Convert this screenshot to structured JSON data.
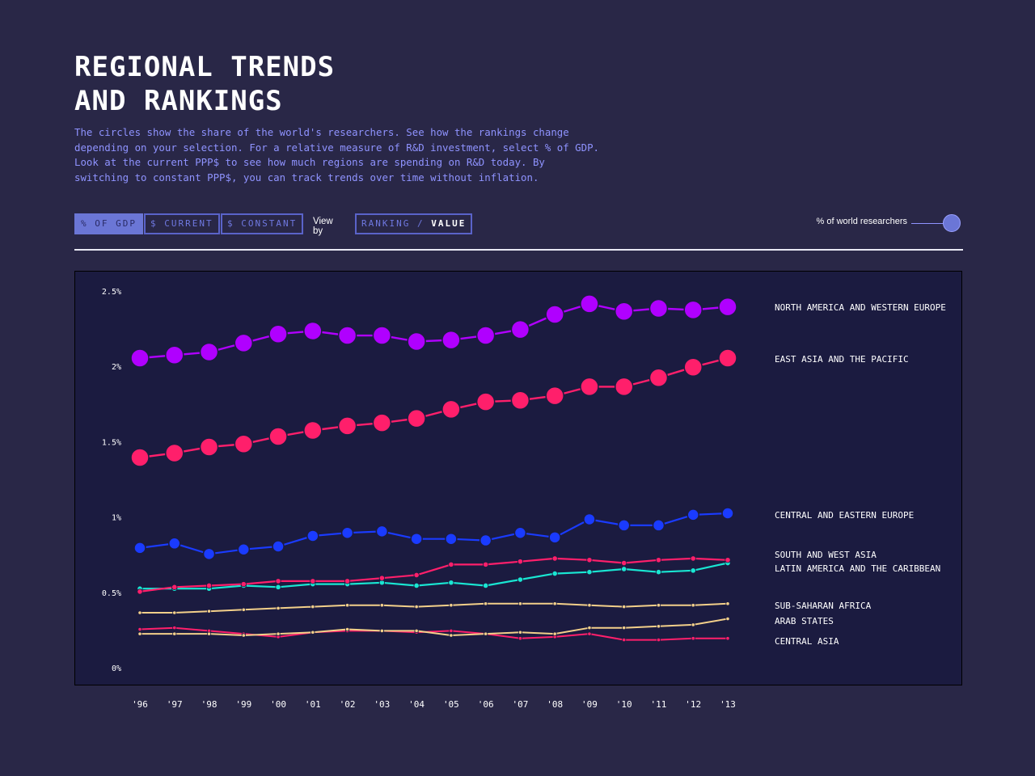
{
  "header": {
    "title_line1": "REGIONAL TRENDS",
    "title_line2": "AND RANKINGS",
    "description_lines": [
      "The circles show the share of the world's researchers. See how the rankings change",
      "depending on your selection. For a relative measure of R&D investment, select % of GDP.",
      "Look at the current PPP$ to see how much regions are spending on R&D today. By",
      "switching to constant PPP$, you can track trends over time without inflation."
    ]
  },
  "controls": {
    "gdp_label": "% OF GDP",
    "current_label": "$ CURRENT",
    "constant_label": "$ CONSTANT",
    "viewby_label": "View by",
    "ranking_label": "RANKING",
    "separator": "/",
    "value_label": "VALUE",
    "active_measure": "% OF GDP",
    "active_view": "VALUE"
  },
  "legend": {
    "size_label": "% of world researchers"
  },
  "colors": {
    "background": "#292747",
    "plot_background": "#1b1b40",
    "accent": "#6b76d6",
    "purple": "#b000ff",
    "pink": "#ff1f6b",
    "blue": "#1a3bff",
    "cyan": "#19e6d2",
    "sand": "#f3d08a"
  },
  "chart_data": {
    "type": "line",
    "x": [
      "'96",
      "'97",
      "'98",
      "'99",
      "'00",
      "'01",
      "'02",
      "'03",
      "'04",
      "'05",
      "'06",
      "'07",
      "'08",
      "'09",
      "'10",
      "'11",
      "'12",
      "'13"
    ],
    "ylim": [
      0,
      2.5
    ],
    "yticks": [
      {
        "value": 0,
        "label": "0%"
      },
      {
        "value": 0.5,
        "label": "0.5%"
      },
      {
        "value": 1,
        "label": "1%"
      },
      {
        "value": 1.5,
        "label": "1.5%"
      },
      {
        "value": 2,
        "label": "2%"
      },
      {
        "value": 2.5,
        "label": "2.5%"
      }
    ],
    "grid": false,
    "series": [
      {
        "name": "NORTH AMERICA AND WESTERN EUROPE",
        "color": "#b000ff",
        "marker_size": "large",
        "values": [
          2.06,
          2.08,
          2.1,
          2.16,
          2.22,
          2.24,
          2.21,
          2.21,
          2.17,
          2.18,
          2.21,
          2.25,
          2.35,
          2.42,
          2.37,
          2.39,
          2.38,
          2.4
        ]
      },
      {
        "name": "EAST ASIA AND THE PACIFIC",
        "color": "#ff1f6b",
        "marker_size": "large",
        "values": [
          1.4,
          1.43,
          1.47,
          1.49,
          1.54,
          1.58,
          1.61,
          1.63,
          1.66,
          1.72,
          1.77,
          1.78,
          1.81,
          1.87,
          1.87,
          1.93,
          2.0,
          2.06
        ]
      },
      {
        "name": "CENTRAL AND EASTERN EUROPE",
        "color": "#1a3bff",
        "marker_size": "medium",
        "values": [
          0.8,
          0.83,
          0.76,
          0.79,
          0.81,
          0.88,
          0.9,
          0.91,
          0.86,
          0.86,
          0.85,
          0.9,
          0.87,
          0.99,
          0.95,
          0.95,
          1.02,
          1.03
        ]
      },
      {
        "name": "SOUTH AND WEST ASIA",
        "color": "#ff1f6b",
        "marker_size": "small",
        "values": [
          0.51,
          0.54,
          0.55,
          0.56,
          0.58,
          0.58,
          0.58,
          0.6,
          0.62,
          0.69,
          0.69,
          0.71,
          0.73,
          0.72,
          0.7,
          0.72,
          0.73,
          0.72
        ]
      },
      {
        "name": "LATIN AMERICA AND THE CARIBBEAN",
        "color": "#19e6d2",
        "marker_size": "small",
        "values": [
          0.53,
          0.53,
          0.53,
          0.55,
          0.54,
          0.56,
          0.56,
          0.57,
          0.55,
          0.57,
          0.55,
          0.59,
          0.63,
          0.64,
          0.66,
          0.64,
          0.65,
          0.7
        ]
      },
      {
        "name": "SUB-SAHARAN AFRICA",
        "color": "#f3d08a",
        "marker_size": "tiny",
        "values": [
          0.37,
          0.37,
          0.38,
          0.39,
          0.4,
          0.41,
          0.42,
          0.42,
          0.41,
          0.42,
          0.43,
          0.43,
          0.43,
          0.42,
          0.41,
          0.42,
          0.42,
          0.43
        ]
      },
      {
        "name": "ARAB STATES",
        "color": "#f3d08a",
        "marker_size": "tiny",
        "values": [
          0.23,
          0.23,
          0.23,
          0.22,
          0.23,
          0.24,
          0.26,
          0.25,
          0.25,
          0.22,
          0.23,
          0.24,
          0.23,
          0.27,
          0.27,
          0.28,
          0.29,
          0.33
        ]
      },
      {
        "name": "CENTRAL ASIA",
        "color": "#ff1f6b",
        "marker_size": "tiny",
        "values": [
          0.26,
          0.27,
          0.25,
          0.23,
          0.21,
          0.24,
          0.25,
          0.25,
          0.24,
          0.25,
          0.23,
          0.2,
          0.21,
          0.23,
          0.19,
          0.19,
          0.2,
          0.2
        ]
      }
    ]
  }
}
